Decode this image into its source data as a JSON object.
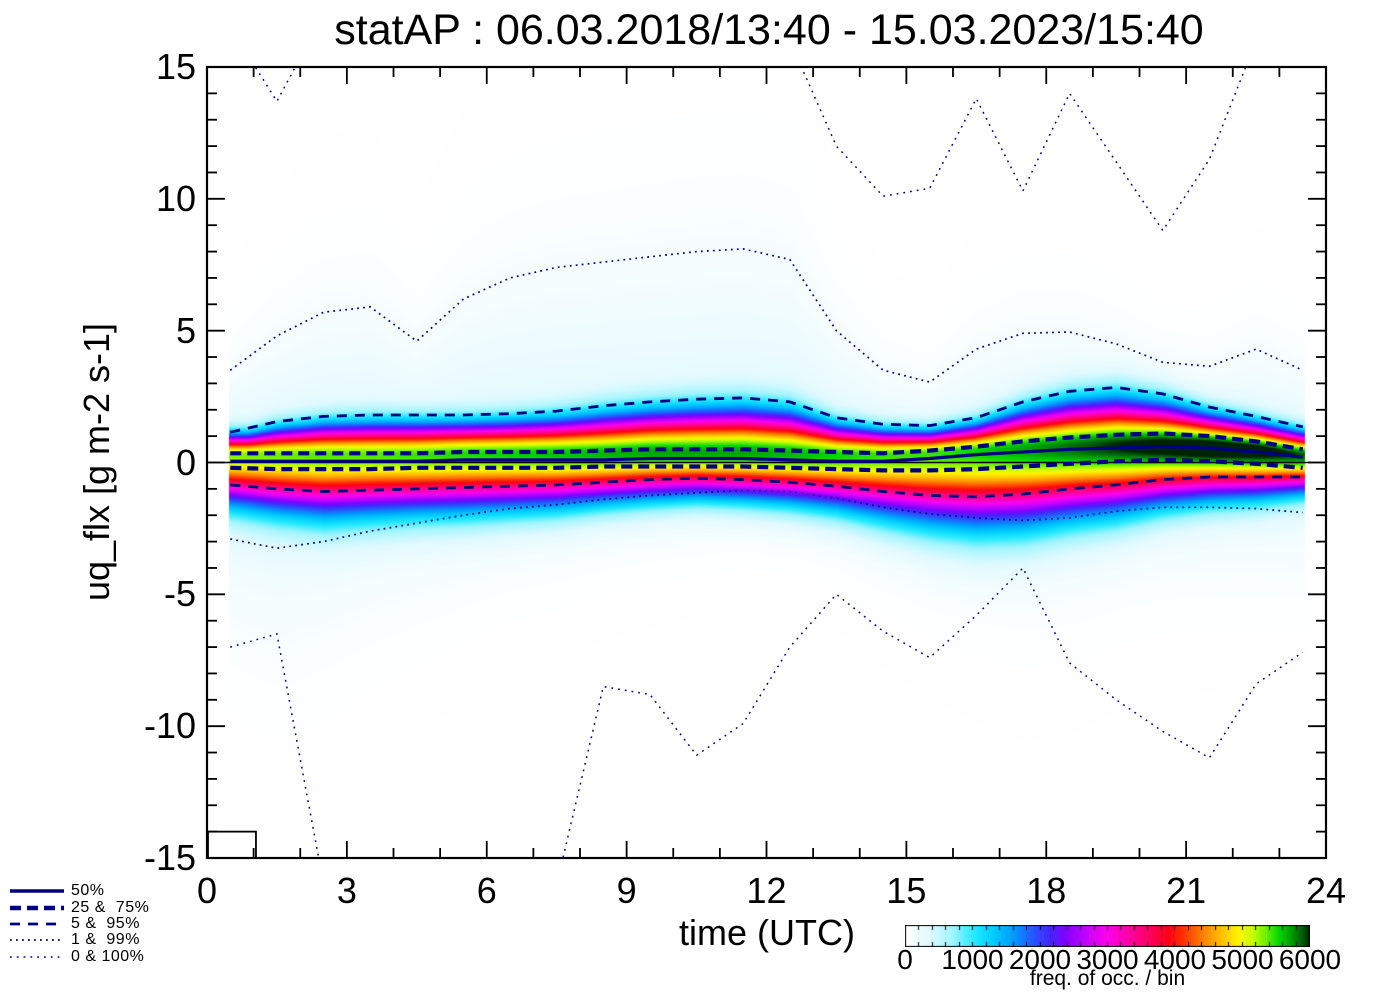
{
  "title": "statAP : 06.03.2018/13:40 - 15.03.2023/15:40",
  "axes": {
    "x": {
      "label": "time (UTC)",
      "min": 0,
      "max": 24,
      "major_ticks": [
        0,
        3,
        6,
        9,
        12,
        15,
        18,
        21,
        24
      ],
      "minor_step": 1
    },
    "y": {
      "label": "uq_flx [g m-2 s-1]",
      "min": -15,
      "max": 15,
      "major_ticks": [
        -15,
        -10,
        -5,
        0,
        5,
        10,
        15
      ],
      "minor_step": 1
    }
  },
  "legend": {
    "items": [
      {
        "label": "50%",
        "style": "solid"
      },
      {
        "label": "25 &  75%",
        "style": "dash-bold"
      },
      {
        "label": "5 &  95%",
        "style": "dash"
      },
      {
        "label": "1 &  99%",
        "style": "dot"
      },
      {
        "label": "0 & 100%",
        "style": "dot-sparse"
      }
    ],
    "line_color": "#000082"
  },
  "colorbar": {
    "label": "freq. of occ. / bin",
    "min": 0,
    "max": 6000,
    "ticks": [
      0,
      1000,
      2000,
      3000,
      4000,
      5000,
      6000
    ],
    "minor_tick_step": 200
  },
  "chart_data": {
    "type": "heatmap",
    "title": "statAP : 06.03.2018/13:40 - 15.03.2023/15:40",
    "xlabel": "time (UTC)",
    "ylabel": "uq_flx [g m-2 s-1]",
    "xlim": [
      0,
      24
    ],
    "ylim": [
      -15,
      15
    ],
    "freq_range": [
      0,
      6000
    ],
    "zero_line_y": 0,
    "bin_size_box": {
      "t0": 0,
      "t1": 1.05,
      "v0": -15,
      "v1": -14
    },
    "bin_centers_utc": [
      0.5,
      1.5,
      2.5,
      3.5,
      4.5,
      5.5,
      6.5,
      7.5,
      8.5,
      9.5,
      10.5,
      11.5,
      12.5,
      13.5,
      14.5,
      15.5,
      16.5,
      17.5,
      18.5,
      19.5,
      20.5,
      21.5,
      22.5,
      23.5
    ],
    "percentile_series": [
      {
        "name": "p0",
        "percentile": 0,
        "style": "dot-sparse",
        "values": [
          -7.0,
          -6.5,
          -16,
          -17,
          -17,
          -17,
          -17,
          -16,
          -8.5,
          -8.8,
          -11.1,
          -9.9,
          -7.0,
          -5.0,
          -6.4,
          -7.4,
          -5.8,
          -4.0,
          -7.6,
          -9.0,
          -10.2,
          -11.2,
          -8.4,
          -7.2
        ]
      },
      {
        "name": "p1",
        "percentile": 1,
        "style": "dot",
        "values": [
          -2.9,
          -3.25,
          -3.0,
          -2.6,
          -2.3,
          -2.0,
          -1.75,
          -1.6,
          -1.4,
          -1.25,
          -1.15,
          -1.05,
          -1.1,
          -1.35,
          -1.7,
          -1.95,
          -2.1,
          -2.2,
          -2.1,
          -1.85,
          -1.7,
          -1.7,
          -1.75,
          -1.9
        ]
      },
      {
        "name": "p5",
        "percentile": 5,
        "style": "dash",
        "values": [
          -0.85,
          -1.0,
          -1.1,
          -1.05,
          -1.0,
          -0.95,
          -0.9,
          -0.85,
          -0.75,
          -0.65,
          -0.6,
          -0.65,
          -0.75,
          -0.9,
          -1.1,
          -1.25,
          -1.3,
          -1.2,
          -1.0,
          -0.85,
          -0.65,
          -0.55,
          -0.55,
          -0.55
        ]
      },
      {
        "name": "p25",
        "percentile": 25,
        "style": "dash-bold",
        "values": [
          -0.2,
          -0.25,
          -0.25,
          -0.25,
          -0.2,
          -0.2,
          -0.2,
          -0.2,
          -0.15,
          -0.15,
          -0.15,
          -0.15,
          -0.2,
          -0.25,
          -0.3,
          -0.3,
          -0.25,
          -0.15,
          -0.05,
          0.05,
          0.1,
          0.05,
          -0.05,
          -0.2
        ]
      },
      {
        "name": "p50",
        "percentile": 50,
        "style": "solid",
        "values": [
          0.05,
          0.05,
          0.05,
          0.05,
          0.05,
          0.1,
          0.1,
          0.1,
          0.1,
          0.15,
          0.15,
          0.15,
          0.1,
          0.05,
          0.05,
          0.15,
          0.3,
          0.4,
          0.5,
          0.55,
          0.6,
          0.55,
          0.4,
          0.2
        ]
      },
      {
        "name": "p75",
        "percentile": 75,
        "style": "dash-bold",
        "values": [
          0.35,
          0.35,
          0.35,
          0.35,
          0.35,
          0.4,
          0.4,
          0.4,
          0.45,
          0.5,
          0.5,
          0.5,
          0.45,
          0.4,
          0.35,
          0.45,
          0.6,
          0.8,
          0.95,
          1.05,
          1.1,
          1.0,
          0.8,
          0.5
        ]
      },
      {
        "name": "p95",
        "percentile": 95,
        "style": "dash",
        "values": [
          1.15,
          1.55,
          1.75,
          1.8,
          1.8,
          1.8,
          1.85,
          1.95,
          2.15,
          2.3,
          2.4,
          2.45,
          2.3,
          1.7,
          1.45,
          1.4,
          1.7,
          2.3,
          2.7,
          2.85,
          2.6,
          2.1,
          1.75,
          1.35
        ]
      },
      {
        "name": "p99",
        "percentile": 99,
        "style": "dot",
        "values": [
          3.5,
          4.8,
          5.7,
          5.9,
          4.6,
          6.2,
          7.0,
          7.4,
          7.6,
          7.8,
          8.0,
          8.1,
          7.7,
          5.0,
          3.5,
          3.05,
          4.3,
          4.9,
          4.95,
          4.5,
          3.8,
          3.65,
          4.3,
          3.5
        ]
      },
      {
        "name": "p100",
        "percentile": 100,
        "style": "dot-sparse",
        "values": [
          16.5,
          13.7,
          17,
          17,
          17,
          17,
          17,
          17,
          17,
          17,
          17,
          17,
          16,
          12.0,
          10.1,
          10.4,
          13.8,
          10.3,
          14.0,
          11.4,
          8.8,
          11.5,
          16.0,
          17
        ]
      }
    ],
    "density_model": {
      "mode": [
        0.3,
        0.3,
        0.3,
        0.3,
        0.3,
        0.35,
        0.35,
        0.35,
        0.35,
        0.4,
        0.4,
        0.4,
        0.35,
        0.3,
        0.3,
        0.35,
        0.45,
        0.55,
        0.6,
        0.65,
        0.65,
        0.6,
        0.5,
        0.3
      ],
      "peak": [
        5000,
        5050,
        5100,
        5100,
        5150,
        5200,
        5250,
        5300,
        5350,
        5400,
        5400,
        5400,
        5350,
        5250,
        5150,
        5150,
        5250,
        5400,
        5550,
        5700,
        5850,
        5980,
        5900,
        5600
      ],
      "halo_amplitude": 300
    },
    "colormap_stops": [
      [
        0,
        255,
        255,
        255
      ],
      [
        350,
        225,
        250,
        255
      ],
      [
        700,
        160,
        245,
        255
      ],
      [
        1000,
        40,
        235,
        255
      ],
      [
        1300,
        0,
        205,
        255
      ],
      [
        1600,
        0,
        155,
        255
      ],
      [
        1900,
        40,
        85,
        255
      ],
      [
        2150,
        70,
        35,
        255
      ],
      [
        2400,
        135,
        0,
        255
      ],
      [
        2700,
        200,
        0,
        255
      ],
      [
        3000,
        255,
        0,
        235
      ],
      [
        3300,
        255,
        0,
        170
      ],
      [
        3600,
        255,
        0,
        100
      ],
      [
        3900,
        255,
        0,
        25
      ],
      [
        4100,
        255,
        45,
        0
      ],
      [
        4400,
        255,
        125,
        0
      ],
      [
        4700,
        255,
        195,
        0
      ],
      [
        4950,
        255,
        245,
        0
      ],
      [
        5150,
        200,
        255,
        0
      ],
      [
        5350,
        110,
        240,
        0
      ],
      [
        5550,
        0,
        215,
        0
      ],
      [
        5750,
        0,
        150,
        0
      ],
      [
        5900,
        0,
        90,
        10
      ],
      [
        6000,
        0,
        35,
        5
      ]
    ],
    "line_color": "#000082"
  }
}
